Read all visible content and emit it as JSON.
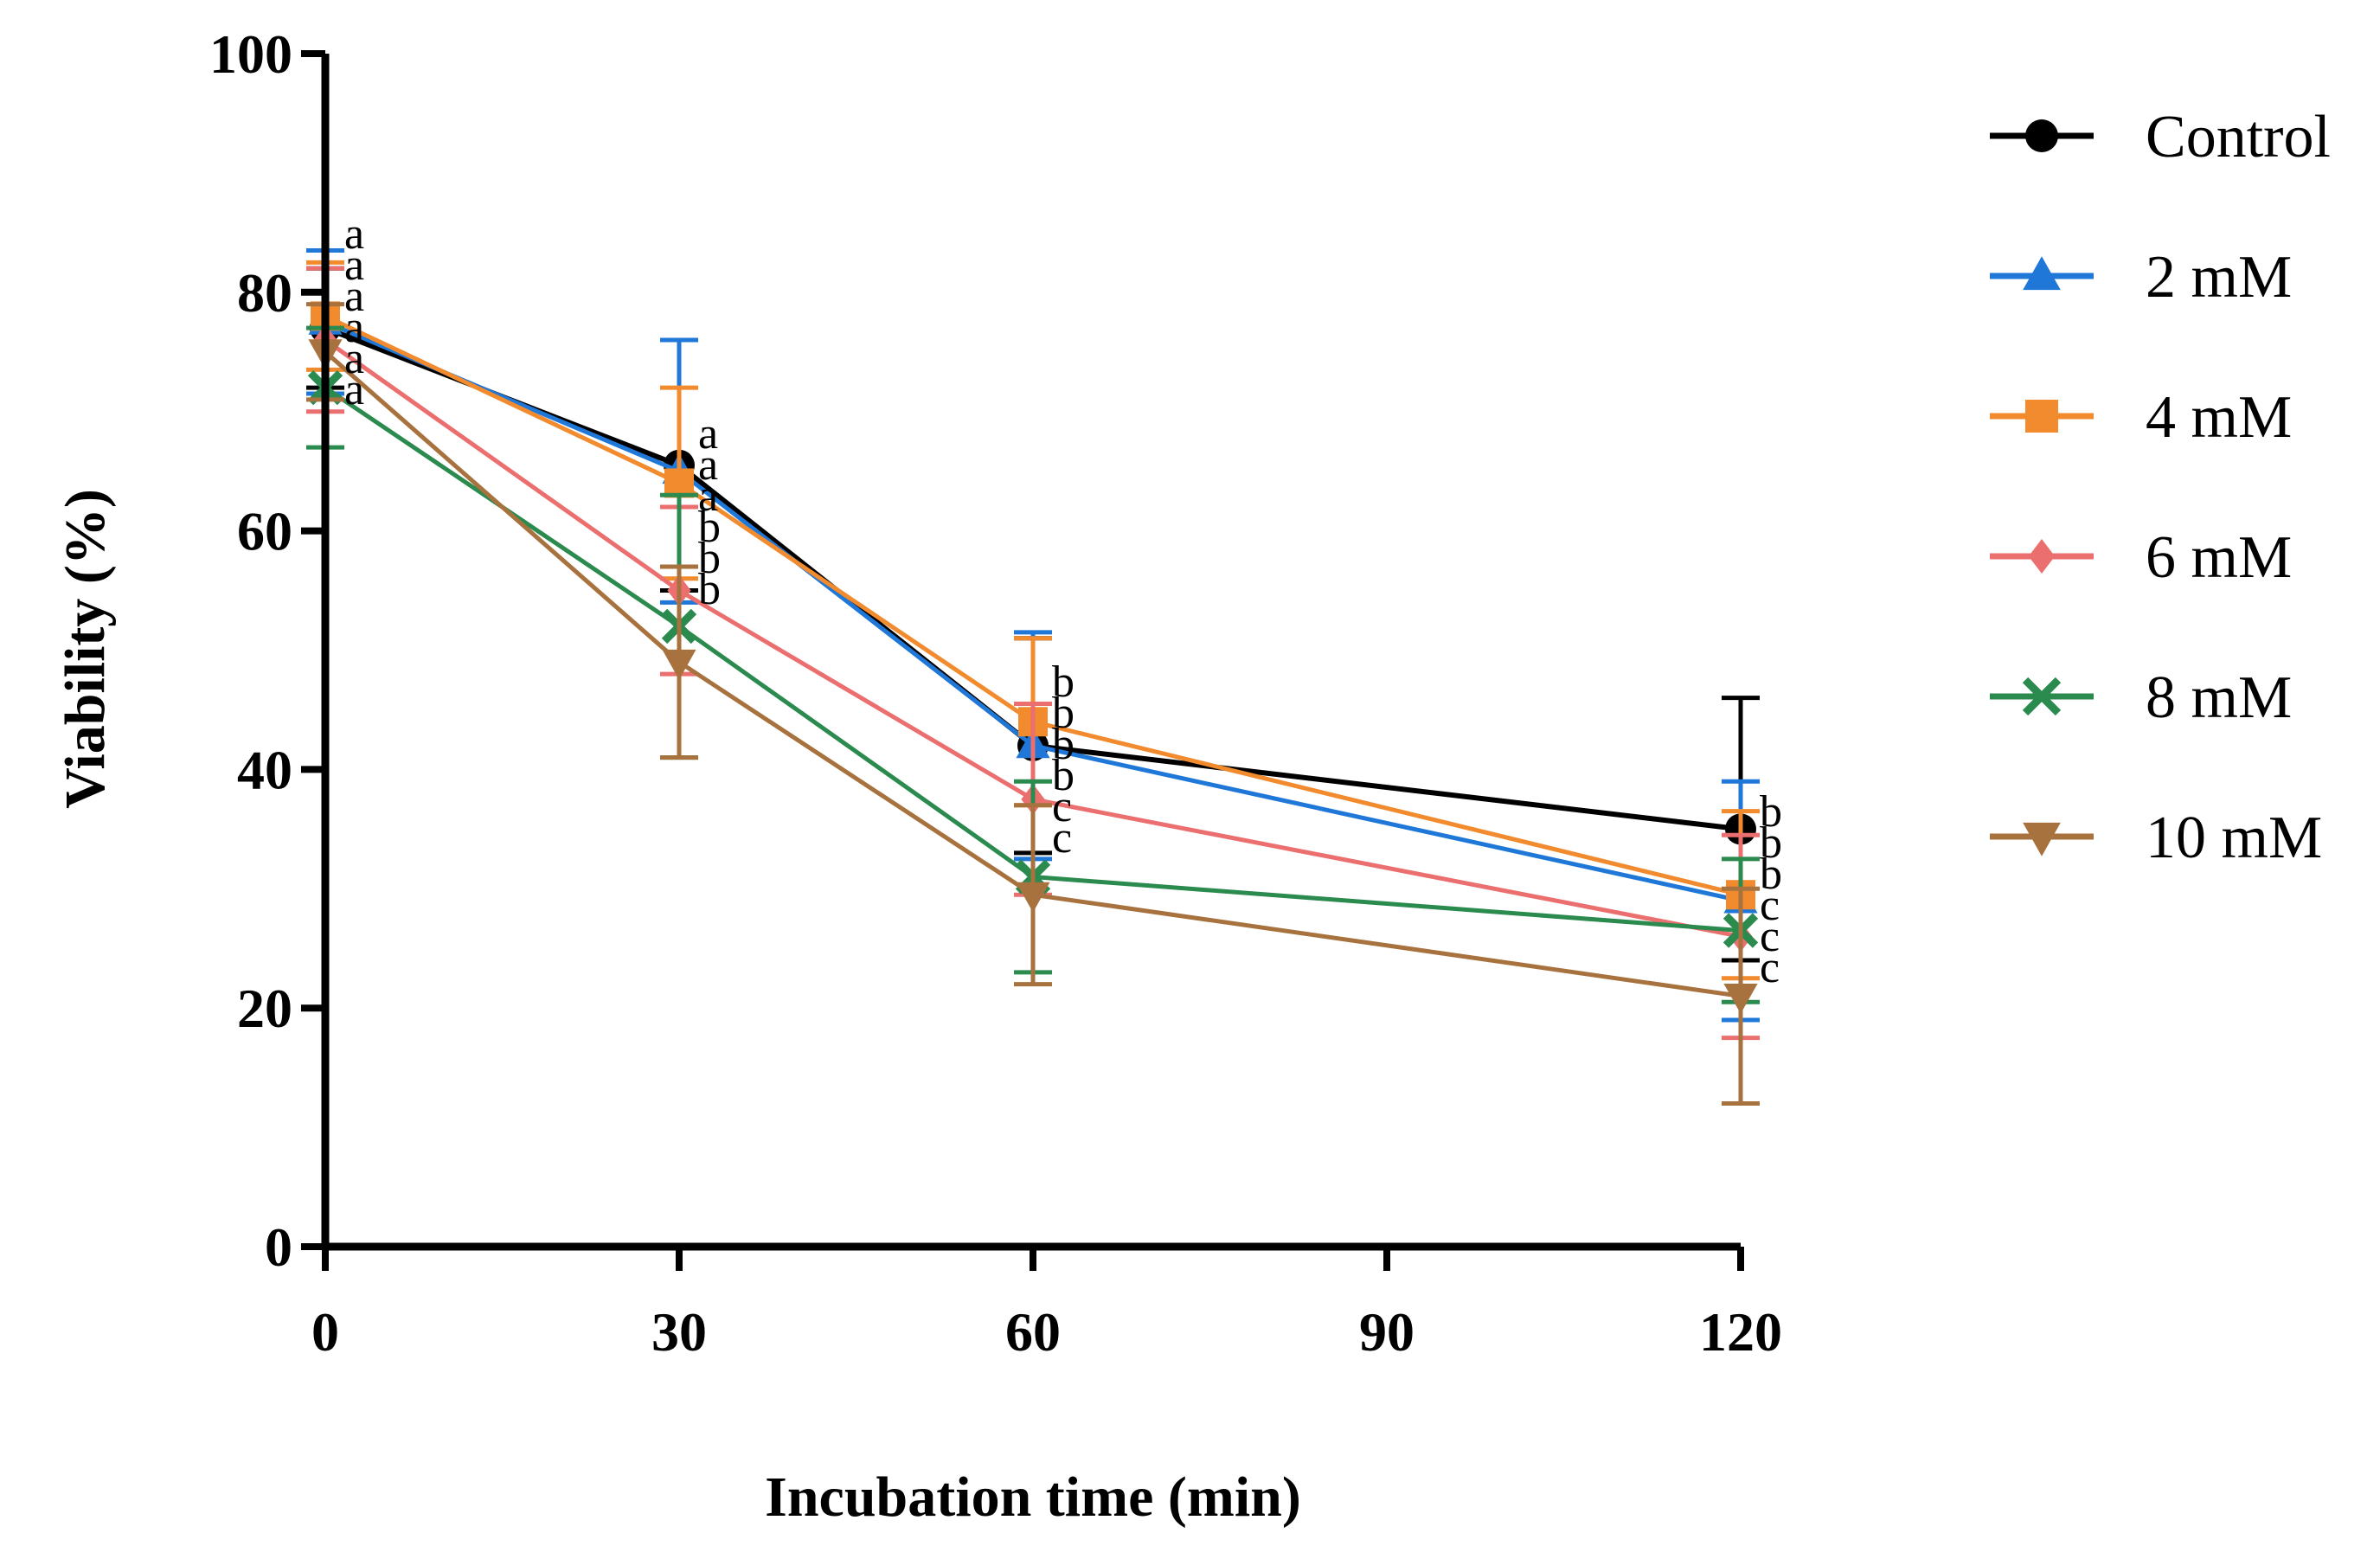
{
  "chart_data": {
    "type": "line",
    "title": "",
    "xlabel": "Incubation time (min)",
    "ylabel": "Viability (%)",
    "xlim": [
      0,
      120
    ],
    "ylim": [
      0,
      100
    ],
    "xticks": [
      0,
      30,
      60,
      90,
      120
    ],
    "yticks": [
      0,
      20,
      40,
      60,
      80,
      100
    ],
    "x": [
      0,
      30,
      60,
      120
    ],
    "legend_position": "right",
    "series": [
      {
        "name": "Control",
        "color": "#000000",
        "marker": "circle",
        "values": [
          77,
          65.5,
          42,
          35
        ],
        "error": [
          5,
          10.5,
          9,
          11
        ],
        "labels": [
          "a",
          "a",
          "b",
          "b"
        ]
      },
      {
        "name": "2 mM",
        "color": "#1f77d8",
        "marker": "triangle-up",
        "values": [
          77.5,
          65,
          42,
          29
        ],
        "error": [
          6,
          11,
          9.5,
          10
        ],
        "labels": [
          "a",
          "a",
          "b",
          "b"
        ]
      },
      {
        "name": "4 mM",
        "color": "#f28a2e",
        "marker": "square",
        "values": [
          78,
          64,
          44,
          29.5
        ],
        "error": [
          4.5,
          8,
          7,
          7
        ],
        "labels": [
          "a",
          "a",
          "b",
          "b"
        ]
      },
      {
        "name": "6 mM",
        "color": "#ec6f6f",
        "marker": "diamond",
        "values": [
          76,
          55,
          37.5,
          26
        ],
        "error": [
          6,
          7,
          8,
          8.5
        ],
        "labels": [
          "a",
          "b",
          "b",
          "c"
        ]
      },
      {
        "name": "8 mM",
        "color": "#2b8a4e",
        "marker": "x",
        "values": [
          72,
          52,
          31,
          26.5
        ],
        "error": [
          5,
          11,
          8,
          6
        ],
        "labels": [
          "a",
          "b",
          "c",
          "c"
        ]
      },
      {
        "name": "10 mM",
        "color": "#a8723e",
        "marker": "triangle-down",
        "values": [
          75,
          49,
          29.5,
          21
        ],
        "error": [
          4,
          8,
          7.5,
          9
        ],
        "labels": [
          "a",
          "b",
          "c",
          "c"
        ]
      }
    ]
  }
}
